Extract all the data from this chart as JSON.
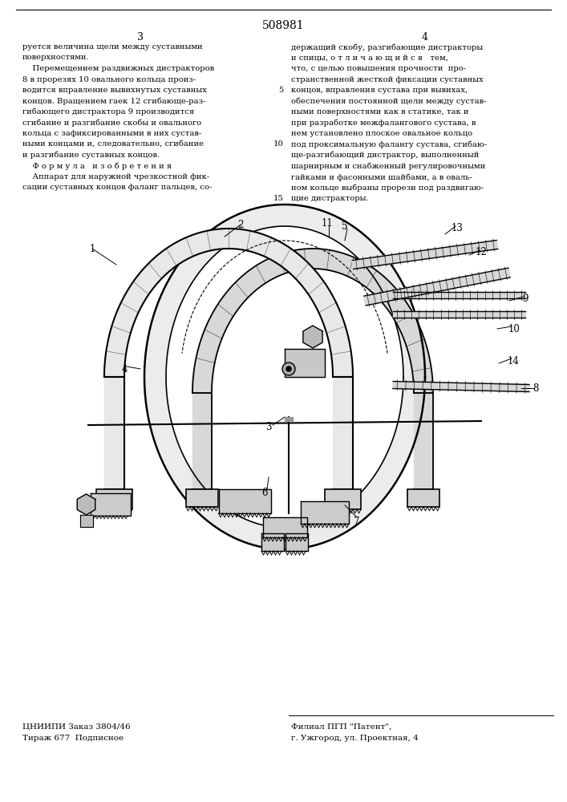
{
  "patent_number": "508981",
  "page_left": "3",
  "page_right": "4",
  "text_left_col": [
    "руется величина щели между суставными",
    "поверхностями.",
    "    Перемещением раздвижных дистракторов",
    "8 в прорезях 10 овального кольца произ-",
    "водится вправление вывихнутых суставных",
    "концов. Вращением гаек 12 сгибающе-раз-",
    "гибающего дистрактора 9 производится",
    "сгибание и разгибание скобы и овального",
    "кольца с зафиксированными в них сустав-",
    "ными концами и, следовательно, сгибание",
    "и разгибание суставных концов.",
    "    Ф о р м у л а   и з о б р е т е н и я",
    "    Аппарат для наружной чрезкостной фик-",
    "сации суставных концов фаланг пальцев, со-"
  ],
  "text_right_col": [
    "держащий скобу, разгибающие дистракторы",
    "и спицы, о т л и ч а ю щ и й с я   тем,",
    "что, с целью повышения прочности  про-",
    "странственной жесткой фиксации суставных",
    "концов, вправления сустава при вывихах,",
    "обеспечения постоянной щели между сустав-",
    "ными поверхностями как в статике, так и",
    "при разработке межфалангового сустава, в",
    "нем установлено плоское овальное кольцо",
    "под проксимальную фалангу сустава, сгибаю-",
    "ще-разгибающий дистрактор, выполненный",
    "шарнирным и снабженный регулировочными",
    "гайками и фасонными шайбами, а в оваль-",
    "ном кольце выбраны прорези под раздвигаю-",
    "щие дистракторы."
  ],
  "bottom_left_text": [
    "ЦНИИПИ Заказ 3804/46",
    "Тираж 677  Подписное"
  ],
  "bottom_right_text": [
    "Филиал ПГП \"Патент\",",
    "г. Ужгород, ул. Проектная, 4"
  ],
  "bg_color": "#ffffff",
  "text_color": "#000000"
}
